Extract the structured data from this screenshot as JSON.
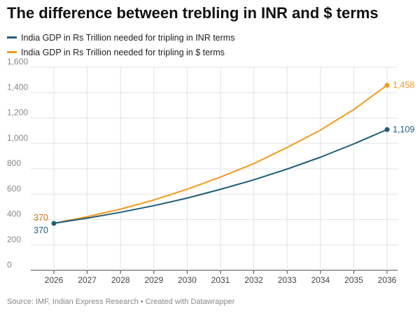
{
  "title": "The difference between trebling in INR and $ terms",
  "source": "Source: IMF, Indian Express Research • Created with Datawrapper",
  "chart_data": {
    "type": "line",
    "title": "The difference between trebling in INR and $ terms",
    "x": [
      2026,
      2027,
      2028,
      2029,
      2030,
      2031,
      2032,
      2033,
      2034,
      2035,
      2036
    ],
    "x_ticks": [
      "2026",
      "2027",
      "2028",
      "2029",
      "2030",
      "2031",
      "2032",
      "2033",
      "2034",
      "2035",
      "2036"
    ],
    "y_ticks": [
      "0",
      "200",
      "400",
      "600",
      "800",
      "1,000",
      "1,200",
      "1,400",
      "1,600"
    ],
    "ylim": [
      0,
      1600
    ],
    "grid": true,
    "legend_position": "top-left",
    "series": [
      {
        "name": "India GDP in Rs Trillion needed for tripling in INR terms",
        "color": "#1d5c7a",
        "values": [
          370,
          411,
          457,
          509,
          569,
          638,
          713,
          798,
          891,
          996,
          1109
        ],
        "start_label": "370",
        "end_label": "1,109"
      },
      {
        "name": "India GDP in Rs Trillion needed for tripling in $ terms",
        "color": "#f39a1e",
        "values": [
          370,
          422,
          482,
          554,
          639,
          735,
          841,
          968,
          1105,
          1267,
          1458
        ],
        "start_label": "370",
        "end_label": "1,458"
      }
    ]
  }
}
